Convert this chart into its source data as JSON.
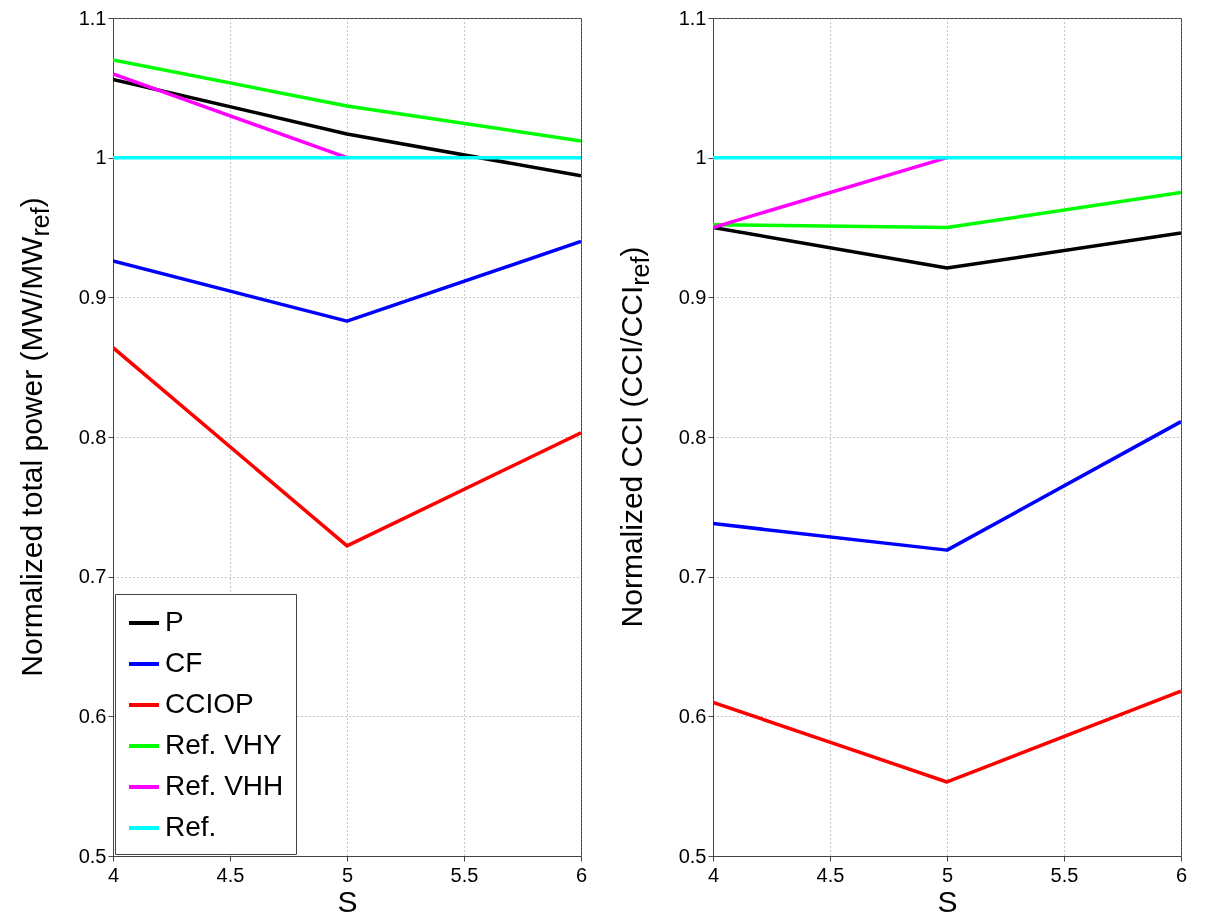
{
  "chart_data": [
    {
      "type": "line",
      "xlabel": "S",
      "ylabel": "Normalized total power (MW/MW$_{ref}$)",
      "x": [
        4,
        5,
        6
      ],
      "xlim": [
        4,
        6
      ],
      "xticks": [
        4,
        4.5,
        5,
        5.5,
        6
      ],
      "ylim": [
        0.5,
        1.1
      ],
      "yticks": [
        0.5,
        0.6,
        0.7,
        0.8,
        0.9,
        1,
        1.1
      ],
      "grid": true,
      "legend": "bottom left",
      "series": [
        {
          "name": "P",
          "color": "#000000",
          "values": [
            1.056,
            1.017,
            0.987
          ]
        },
        {
          "name": "CF",
          "color": "#0000ff",
          "values": [
            0.926,
            0.883,
            0.94
          ]
        },
        {
          "name": "CCIOP",
          "color": "#ff0000",
          "values": [
            0.864,
            0.722,
            0.803
          ]
        },
        {
          "name": "Ref. VHY",
          "color": "#00ff00",
          "values": [
            1.07,
            1.037,
            1.012
          ]
        },
        {
          "name": "Ref. VHH",
          "color": "#ff00ff",
          "values": [
            1.06,
            1.0,
            null
          ]
        },
        {
          "name": "Ref.",
          "color": "#00ffff",
          "values": [
            1,
            1,
            1
          ]
        }
      ]
    },
    {
      "type": "line",
      "xlabel": "S",
      "ylabel": "Normalized CCI (CCI/CCI$_{ref}$)",
      "x": [
        4,
        5,
        6
      ],
      "xlim": [
        4,
        6
      ],
      "xticks": [
        4,
        4.5,
        5,
        5.5,
        6
      ],
      "ylim": [
        0.5,
        1.1
      ],
      "yticks": [
        0.5,
        0.6,
        0.7,
        0.8,
        0.9,
        1,
        1.1
      ],
      "grid": true,
      "series": [
        {
          "color": "#000000",
          "values": [
            0.95,
            0.921,
            0.946
          ]
        },
        {
          "color": "#0000ff",
          "values": [
            0.738,
            0.719,
            0.811
          ]
        },
        {
          "color": "#ff0000",
          "values": [
            0.61,
            0.553,
            0.618
          ]
        },
        {
          "color": "#00ff00",
          "values": [
            0.952,
            0.95,
            0.975
          ]
        },
        {
          "color": "#ff00ff",
          "values": [
            0.95,
            1.0,
            null
          ]
        },
        {
          "color": "#00ffff",
          "values": [
            1,
            1,
            1
          ]
        }
      ]
    }
  ]
}
